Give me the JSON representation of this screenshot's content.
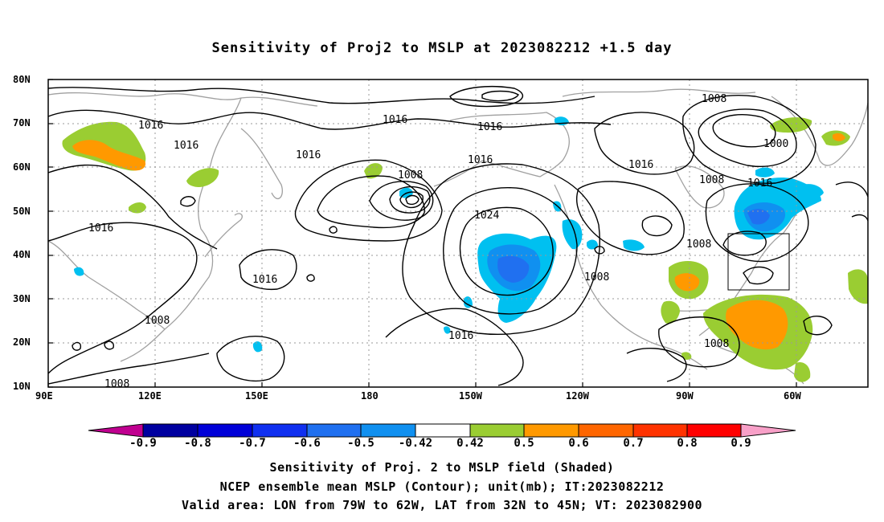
{
  "title": "Sensitivity of Proj2 to MSLP at 2023082212 +1.5 day",
  "map": {
    "lon_labels": [
      "90E",
      "120E",
      "150E",
      "180",
      "150W",
      "120W",
      "90W",
      "60W"
    ],
    "lat_labels": [
      "80N",
      "70N",
      "60N",
      "50N",
      "40N",
      "30N",
      "20N",
      "10N"
    ],
    "contour_labels": [
      "1016",
      "1016",
      "1016",
      "1016",
      "1016",
      "1016",
      "1016",
      "1016",
      "1016",
      "1016",
      "1008",
      "1008",
      "1008",
      "1008",
      "1008",
      "1008",
      "1008",
      "1008",
      "1024",
      "1000"
    ],
    "valid_box": {
      "lon_from": "79W",
      "lon_to": "62W",
      "lat_from": "32N",
      "lat_to": "45N"
    }
  },
  "colorbar": {
    "labels": [
      "-0.9",
      "-0.8",
      "-0.7",
      "-0.6",
      "-0.5",
      "-0.42",
      "0.42",
      "0.5",
      "0.6",
      "0.7",
      "0.8",
      "0.9"
    ],
    "colors": [
      "#0000a0",
      "#0000d8",
      "#1030f0",
      "#2070f0",
      "#1090f0",
      "#00c0f0",
      "#ffffff",
      "#9acd32",
      "#ff9900",
      "#ff6600",
      "#ff3300",
      "#ff0000"
    ],
    "end_low_color": "#c00090",
    "end_high_color": "#f8a0c8"
  },
  "captions": {
    "line1": "Sensitivity of Proj. 2 to MSLP field (Shaded)",
    "line2": "NCEP ensemble mean MSLP (Contour); unit(mb); IT:2023082212",
    "line3": "Valid area: LON from 79W to 62W, LAT from 32N to 45N; VT: 2023082900"
  }
}
